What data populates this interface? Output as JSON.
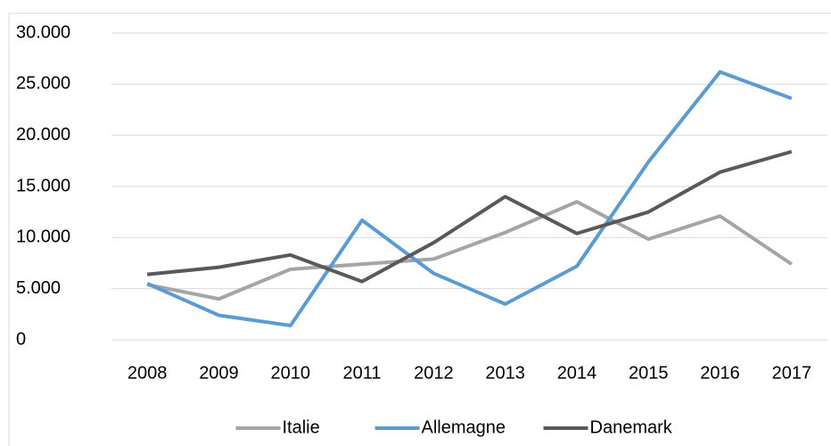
{
  "chart_data": {
    "type": "line",
    "categories": [
      "2008",
      "2009",
      "2010",
      "2011",
      "2012",
      "2013",
      "2014",
      "2015",
      "2016",
      "2017"
    ],
    "series": [
      {
        "name": "Italie",
        "color": "#a5a5a5",
        "values": [
          5400,
          4000,
          6900,
          7400,
          7900,
          10500,
          13500,
          9850,
          12100,
          7400
        ]
      },
      {
        "name": "Allemagne",
        "color": "#5b9bd5",
        "values": [
          5500,
          2400,
          1400,
          11700,
          6500,
          3500,
          7200,
          17400,
          26200,
          23600
        ]
      },
      {
        "name": "Danemark",
        "color": "#595959",
        "values": [
          6400,
          7100,
          8300,
          5700,
          9500,
          14000,
          10400,
          12500,
          16400,
          18400
        ]
      }
    ],
    "ylim": [
      0,
      30000
    ],
    "yticks": [
      0,
      {
        "value": 5000,
        "label": "5.000"
      },
      {
        "value": 10000,
        "label": "10.000"
      },
      {
        "value": 15000,
        "label": "15.000"
      },
      {
        "value": 20000,
        "label": "20.000"
      },
      {
        "value": 25000,
        "label": "25.000"
      },
      {
        "value": 30000,
        "label": "30.000"
      }
    ],
    "grid": true,
    "legend": "bottom"
  }
}
